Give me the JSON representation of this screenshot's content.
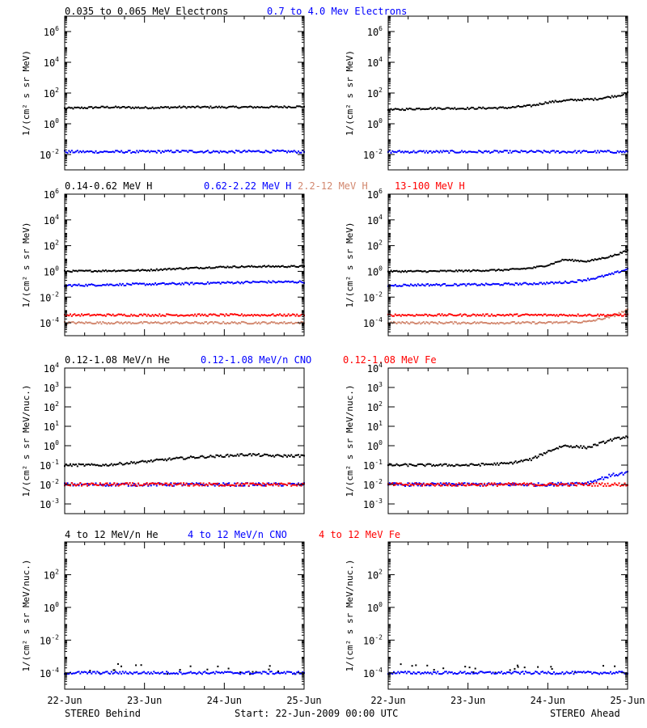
{
  "colors": {
    "black": "#000000",
    "blue": "#0000ff",
    "tan": "#d2876e",
    "red": "#ff0000"
  },
  "legends": [
    [
      {
        "text": "0.035 to 0.065 MeV Electrons",
        "color": "#000000"
      },
      {
        "text": "0.7 to 4.0 Mev Electrons",
        "color": "#0000ff"
      }
    ],
    [
      {
        "text": "0.14-0.62 MeV H",
        "color": "#000000"
      },
      {
        "text": "0.62-2.22 MeV H",
        "color": "#0000ff"
      },
      {
        "text": "2.2-12 MeV H",
        "color": "#d2876e"
      },
      {
        "text": "13-100 MeV H",
        "color": "#ff0000"
      }
    ],
    [
      {
        "text": "0.12-1.08 MeV/n He",
        "color": "#000000"
      },
      {
        "text": "0.12-1.08 MeV/n CNO",
        "color": "#0000ff"
      },
      {
        "text": "0.12-1.08 MeV Fe",
        "color": "#ff0000"
      }
    ],
    [
      {
        "text": "4 to 12 MeV/n He",
        "color": "#000000"
      },
      {
        "text": "4 to 12 MeV/n CNO",
        "color": "#0000ff"
      },
      {
        "text": "4 to 12 MeV Fe",
        "color": "#ff0000"
      }
    ]
  ],
  "footer": {
    "left": "STEREO Behind",
    "center": "Start: 22-Jun-2009 00:00 UTC",
    "right": "STEREO Ahead"
  },
  "chart_data": [
    {
      "id": "electrons-behind",
      "type": "scatter",
      "ylog": true,
      "ylabel": "1/(cm² s sr MeV)",
      "yticks": [
        -2,
        0,
        2,
        4,
        6
      ],
      "ylim_exp": [
        -3,
        7
      ],
      "x_categories": [
        "22-Jun",
        "23-Jun",
        "24-Jun",
        "25-Jun"
      ],
      "series": [
        {
          "color": "#000000",
          "x": [
            22.0,
            22.5,
            23.0,
            23.5,
            24.0,
            24.5,
            25.0
          ],
          "y": [
            10,
            12,
            11,
            12,
            12,
            12,
            13
          ]
        },
        {
          "color": "#0000ff",
          "x": [
            22.0,
            22.5,
            23.0,
            23.5,
            24.0,
            24.5,
            25.0
          ],
          "y": [
            0.015,
            0.015,
            0.015,
            0.016,
            0.015,
            0.016,
            0.015
          ]
        }
      ]
    },
    {
      "id": "electrons-ahead",
      "type": "scatter",
      "ylog": true,
      "ylabel": "1/(cm² s sr MeV)",
      "yticks": [
        -2,
        0,
        2,
        4,
        6
      ],
      "ylim_exp": [
        -3,
        7
      ],
      "x_categories": [
        "22-Jun",
        "23-Jun",
        "24-Jun",
        "25-Jun"
      ],
      "series": [
        {
          "color": "#000000",
          "x": [
            22.0,
            22.5,
            23.0,
            23.5,
            23.8,
            24.0,
            24.3,
            24.6,
            24.9,
            25.0
          ],
          "y": [
            8,
            10,
            10,
            11,
            15,
            25,
            35,
            40,
            70,
            100
          ]
        },
        {
          "color": "#0000ff",
          "x": [
            22.0,
            22.5,
            23.0,
            23.5,
            24.0,
            24.5,
            25.0
          ],
          "y": [
            0.015,
            0.015,
            0.015,
            0.015,
            0.015,
            0.015,
            0.015
          ]
        }
      ]
    },
    {
      "id": "protons-behind",
      "type": "scatter",
      "ylog": true,
      "ylabel": "1/(cm² s sr MeV)",
      "yticks": [
        -4,
        -2,
        0,
        2,
        4,
        6
      ],
      "ylim_exp": [
        -5,
        6
      ],
      "x_categories": [
        "22-Jun",
        "23-Jun",
        "24-Jun",
        "25-Jun"
      ],
      "series": [
        {
          "color": "#000000",
          "x": [
            22.0,
            22.5,
            23.0,
            23.4,
            23.8,
            24.0,
            24.5,
            25.0
          ],
          "y": [
            1.0,
            1.1,
            1.2,
            1.6,
            2.0,
            2.2,
            2.4,
            2.4
          ]
        },
        {
          "color": "#0000ff",
          "x": [
            22.0,
            22.5,
            23.0,
            23.5,
            24.0,
            24.5,
            25.0
          ],
          "y": [
            0.08,
            0.09,
            0.1,
            0.11,
            0.13,
            0.15,
            0.15
          ]
        },
        {
          "color": "#d2876e",
          "x": [
            22.0,
            22.5,
            23.0,
            23.5,
            24.0,
            24.5,
            25.0
          ],
          "y": [
            0.0001,
            0.0001,
            0.0001,
            0.0001,
            0.0001,
            0.0001,
            0.0001
          ]
        },
        {
          "color": "#ff0000",
          "x": [
            22.0,
            22.5,
            23.0,
            23.5,
            24.0,
            24.5,
            25.0
          ],
          "y": [
            0.0004,
            0.0004,
            0.0004,
            0.0004,
            0.0004,
            0.0004,
            0.0004
          ]
        }
      ]
    },
    {
      "id": "protons-ahead",
      "type": "scatter",
      "ylog": true,
      "ylabel": "1/(cm² s sr MeV)",
      "yticks": [
        -4,
        -2,
        0,
        2,
        4,
        6
      ],
      "ylim_exp": [
        -5,
        6
      ],
      "x_categories": [
        "22-Jun",
        "23-Jun",
        "24-Jun",
        "25-Jun"
      ],
      "series": [
        {
          "color": "#000000",
          "x": [
            22.0,
            22.5,
            23.0,
            23.5,
            23.8,
            24.0,
            24.2,
            24.5,
            24.8,
            25.0
          ],
          "y": [
            1.0,
            1.0,
            1.1,
            1.3,
            1.8,
            3,
            8,
            6,
            15,
            40
          ]
        },
        {
          "color": "#0000ff",
          "x": [
            22.0,
            22.5,
            23.0,
            23.5,
            24.0,
            24.3,
            24.6,
            24.8,
            25.0
          ],
          "y": [
            0.08,
            0.09,
            0.09,
            0.1,
            0.12,
            0.15,
            0.3,
            0.6,
            1.5
          ]
        },
        {
          "color": "#d2876e",
          "x": [
            22.0,
            22.5,
            23.0,
            23.5,
            24.0,
            24.5,
            24.8,
            25.0
          ],
          "y": [
            0.0001,
            0.0001,
            0.0001,
            0.0001,
            0.0001,
            0.00012,
            0.0003,
            0.001
          ]
        },
        {
          "color": "#ff0000",
          "x": [
            22.0,
            22.5,
            23.0,
            23.5,
            24.0,
            24.5,
            25.0
          ],
          "y": [
            0.0004,
            0.0004,
            0.0004,
            0.0004,
            0.0004,
            0.0004,
            0.0004
          ]
        }
      ]
    },
    {
      "id": "heavy-low-behind",
      "type": "scatter",
      "ylog": true,
      "ylabel": "1/(cm² s sr MeV/nuc.)",
      "yticks": [
        -3,
        -2,
        -1,
        0,
        1,
        2,
        3,
        4
      ],
      "ylim_exp": [
        -3.5,
        4
      ],
      "x_categories": [
        "22-Jun",
        "23-Jun",
        "24-Jun",
        "25-Jun"
      ],
      "series": [
        {
          "color": "#000000",
          "x": [
            22.0,
            22.5,
            23.0,
            23.3,
            23.6,
            24.0,
            24.3,
            24.6,
            25.0
          ],
          "y": [
            0.1,
            0.1,
            0.15,
            0.2,
            0.25,
            0.3,
            0.35,
            0.3,
            0.3
          ]
        },
        {
          "color": "#0000ff",
          "x": [
            22.0,
            22.5,
            23.0,
            23.5,
            24.0,
            24.5,
            25.0
          ],
          "y": [
            0.01,
            0.01,
            0.01,
            0.01,
            0.01,
            0.01,
            0.01
          ]
        },
        {
          "color": "#ff0000",
          "x": [
            22.0,
            22.5,
            23.0,
            23.5,
            24.0,
            24.5,
            25.0
          ],
          "y": [
            0.01,
            0.01,
            0.01,
            0.01,
            0.01,
            0.01,
            0.01
          ]
        }
      ]
    },
    {
      "id": "heavy-low-ahead",
      "type": "scatter",
      "ylog": true,
      "ylabel": "1/(cm² s sr MeV/nuc.)",
      "yticks": [
        -3,
        -2,
        -1,
        0,
        1,
        2,
        3,
        4
      ],
      "ylim_exp": [
        -3.5,
        4
      ],
      "x_categories": [
        "22-Jun",
        "23-Jun",
        "24-Jun",
        "25-Jun"
      ],
      "series": [
        {
          "color": "#000000",
          "x": [
            22.0,
            22.5,
            23.0,
            23.5,
            23.8,
            24.0,
            24.2,
            24.5,
            24.8,
            25.0
          ],
          "y": [
            0.1,
            0.1,
            0.1,
            0.12,
            0.2,
            0.5,
            1.0,
            0.8,
            2.0,
            3.0
          ]
        },
        {
          "color": "#0000ff",
          "x": [
            22.0,
            22.5,
            23.0,
            23.5,
            24.0,
            24.5,
            24.8,
            25.0
          ],
          "y": [
            0.01,
            0.01,
            0.01,
            0.01,
            0.01,
            0.012,
            0.03,
            0.04
          ]
        },
        {
          "color": "#ff0000",
          "x": [
            22.0,
            22.5,
            23.0,
            23.5,
            24.0,
            24.5,
            25.0
          ],
          "y": [
            0.01,
            0.01,
            0.01,
            0.01,
            0.01,
            0.01,
            0.01
          ]
        }
      ]
    },
    {
      "id": "heavy-high-behind",
      "type": "scatter",
      "ylog": true,
      "ylabel": "1/(cm² s sr MeV/nuc.)",
      "yticks": [
        -4,
        -2,
        0,
        2
      ],
      "ylim_exp": [
        -5,
        4
      ],
      "x_categories": [
        "22-Jun",
        "23-Jun",
        "24-Jun",
        "25-Jun"
      ],
      "series": [
        {
          "color": "#000000",
          "x": [
            22.3,
            22.5,
            22.7,
            23.0,
            23.3,
            23.6,
            24.0,
            24.3,
            24.6,
            24.9
          ],
          "y": [
            0.0002,
            0.0001,
            0.0003,
            0.0002,
            0.0001,
            0.0002,
            0.0002,
            0.0001,
            0.0002,
            0.0001
          ]
        },
        {
          "color": "#0000ff",
          "x": [
            22.0,
            22.5,
            23.0,
            23.5,
            24.0,
            24.5,
            25.0
          ],
          "y": [
            0.0001,
            0.0001,
            0.0001,
            0.0001,
            0.0001,
            0.0001,
            0.0001
          ]
        }
      ]
    },
    {
      "id": "heavy-high-ahead",
      "type": "scatter",
      "ylog": true,
      "ylabel": "1/(cm² s sr MeV/nuc.)",
      "yticks": [
        -4,
        -2,
        0,
        2
      ],
      "ylim_exp": [
        -5,
        4
      ],
      "x_categories": [
        "22-Jun",
        "23-Jun",
        "24-Jun",
        "25-Jun"
      ],
      "series": [
        {
          "color": "#000000",
          "x": [
            22.3,
            22.5,
            22.9,
            23.3,
            23.6,
            24.0,
            24.3,
            24.6,
            24.9
          ],
          "y": [
            0.0003,
            0.0002,
            0.0002,
            0.0001,
            0.0002,
            0.0002,
            0.0001,
            0.0002,
            0.0002
          ]
        },
        {
          "color": "#0000ff",
          "x": [
            22.0,
            22.5,
            23.0,
            23.5,
            24.0,
            24.5,
            25.0
          ],
          "y": [
            0.0001,
            0.0001,
            0.0001,
            0.0001,
            0.0001,
            0.0001,
            0.0001
          ]
        }
      ]
    }
  ]
}
